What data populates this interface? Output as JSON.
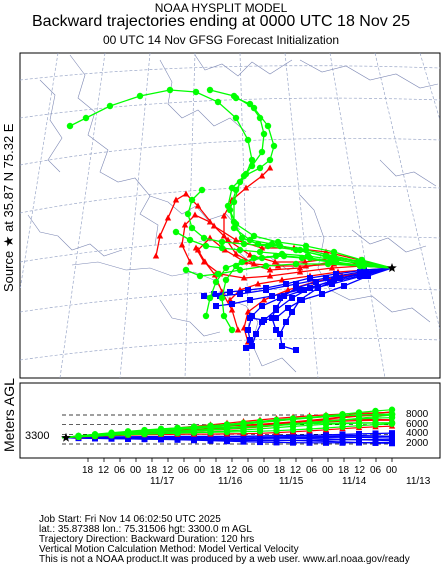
{
  "header": {
    "line1": "NOAA HYSPLIT MODEL",
    "line2": "Backward trajectories ending at 0000 UTC 18 Nov 25",
    "line3": "00 UTC 14 Nov     GFSG  Forecast Initialization"
  },
  "side_label": "Source ★ at    35.87 N   75.32 E",
  "height_axis_label": "Meters AGL",
  "chart_data": {
    "type": "trajectory_map_with_height_profile",
    "map": {
      "source_lat": 35.87,
      "source_lon": 75.32
    },
    "height_panel": {
      "start_height_label": "3300",
      "y_ticks": [
        "2000",
        "4000",
        "6000",
        "8000"
      ],
      "time_ticks": [
        "18",
        "12",
        "06",
        "00",
        "18",
        "12",
        "06",
        "00",
        "18",
        "12",
        "06",
        "00",
        "18",
        "12",
        "06",
        "00",
        "18",
        "12",
        "06",
        "00"
      ],
      "date_labels": [
        "11/17",
        "11/16",
        "11/15",
        "11/14",
        "11/13"
      ]
    },
    "series": [
      {
        "color": "#ff0000",
        "marker": "triangle"
      },
      {
        "color": "#0000ff",
        "marker": "square"
      },
      {
        "color": "#00ff00",
        "marker": "circle"
      }
    ]
  },
  "info": {
    "line1": "Job Start: Fri Nov 14 06:02:50 UTC 2025",
    "line2": "lat.: 35.87388   lon.: 75.31506   hgt: 3300.0 m AGL",
    "line3": "Trajectory Direction: Backward       Duration: 120 hrs",
    "line4": "Vertical Motion Calculation Method: Model Vertical Velocity",
    "line5": "This is not a NOAA product.It was produced by a web user. www.arl.noaa.gov/ready"
  }
}
